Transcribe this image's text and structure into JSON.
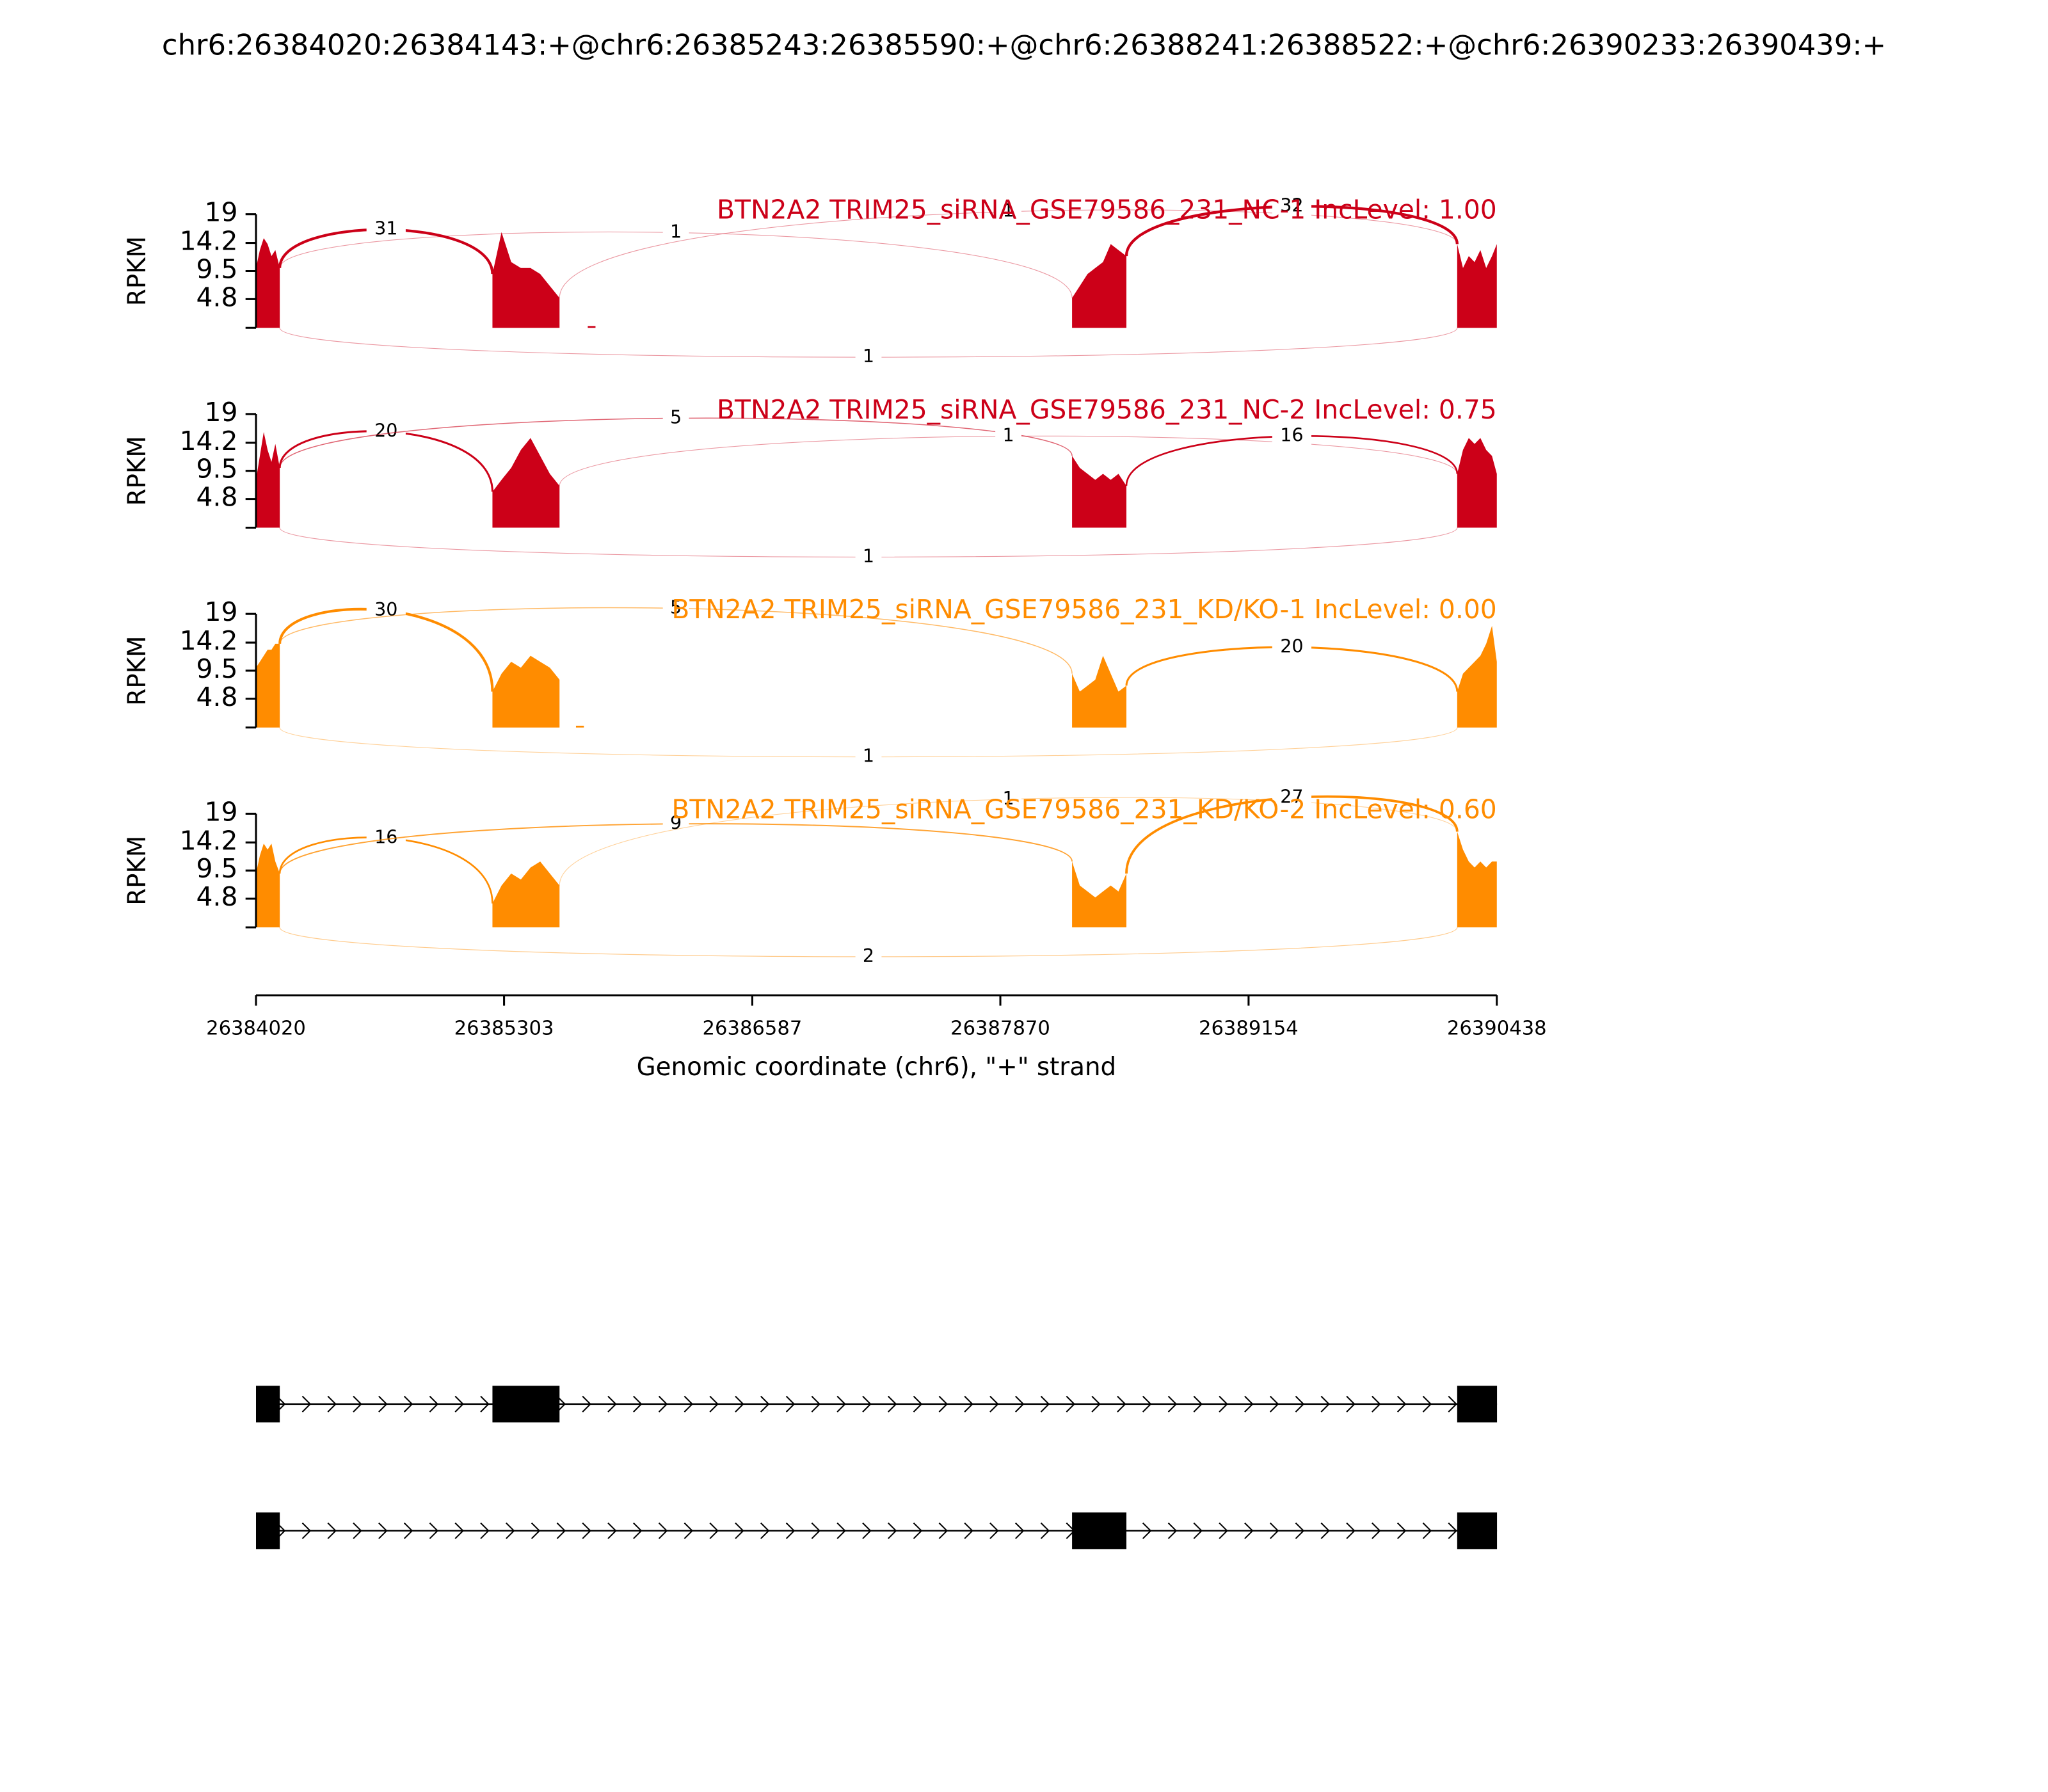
{
  "chart_data": {
    "type": "sashimi",
    "title": "chr6:26384020:26384143:+@chr6:26385243:26385590:+@chr6:26388241:26388522:+@chr6:26390233:26390439:+",
    "xlabel": "Genomic coordinate (chr6), \"+\" strand",
    "ylabel": "RPKM",
    "xlim": [
      26384020,
      26390438
    ],
    "xticks": [
      26384020,
      26385303,
      26386587,
      26387870,
      26389154,
      26390438
    ],
    "ylim": [
      0,
      19
    ],
    "yticks": [
      4.8,
      9.5,
      14.2,
      19
    ],
    "panels": [
      {
        "label": "BTN2A2 TRIM25_siRNA_GSE79586_231_NC-1 IncLevel: 1.00",
        "color": "#cc0018",
        "coverage": [
          {
            "x": [
              26384020,
              26384040,
              26384060,
              26384080,
              26384100,
              26384120,
              26384143
            ],
            "values": [
              10,
              13,
              15,
              14,
              12,
              13,
              10
            ]
          },
          {
            "x": [
              26385243,
              26385290,
              26385340,
              26385390,
              26385440,
              26385490,
              26385540,
              26385590
            ],
            "values": [
              9,
              16,
              11,
              10,
              10,
              9,
              7,
              5
            ]
          },
          {
            "x": [
              26385736,
              26385776
            ],
            "values": [
              0.3,
              0.3
            ]
          },
          {
            "x": [
              26388241,
              26388281,
              26388321,
              26388361,
              26388401,
              26388441,
              26388481,
              26388522
            ],
            "values": [
              5,
              7,
              9,
              10,
              11,
              14,
              13,
              12
            ]
          },
          {
            "x": [
              26390233,
              26390263,
              26390293,
              26390323,
              26390353,
              26390383,
              26390413,
              26390438
            ],
            "values": [
              14,
              10,
              12,
              11,
              13,
              10,
              12,
              14
            ]
          }
        ],
        "junctions": [
          {
            "start": 26384143,
            "end": 26385243,
            "count": 31,
            "side": "above"
          },
          {
            "start": 26384143,
            "end": 26388241,
            "count": 1,
            "side": "above"
          },
          {
            "start": 26385590,
            "end": 26390233,
            "count": 1,
            "side": "above"
          },
          {
            "start": 26388522,
            "end": 26390233,
            "count": 32,
            "side": "above"
          },
          {
            "start": 26384143,
            "end": 26390233,
            "count": 1,
            "side": "below"
          }
        ]
      },
      {
        "label": "BTN2A2 TRIM25_siRNA_GSE79586_231_NC-2 IncLevel: 0.75",
        "color": "#cc0018",
        "coverage": [
          {
            "x": [
              26384020,
              26384040,
              26384060,
              26384080,
              26384100,
              26384120,
              26384143
            ],
            "values": [
              8,
              12,
              16,
              13,
              11,
              14,
              10
            ]
          },
          {
            "x": [
              26385243,
              26385290,
              26385340,
              26385390,
              26385440,
              26385490,
              26385540,
              26385590
            ],
            "values": [
              6,
              8,
              10,
              13,
              15,
              12,
              9,
              7
            ]
          },
          {
            "x": [
              26388241,
              26388281,
              26388321,
              26388361,
              26388401,
              26388441,
              26388481,
              26388522
            ],
            "values": [
              12,
              10,
              9,
              8,
              9,
              8,
              9,
              7
            ]
          },
          {
            "x": [
              26390233,
              26390263,
              26390293,
              26390323,
              26390353,
              26390383,
              26390413,
              26390438
            ],
            "values": [
              9,
              13,
              15,
              14,
              15,
              13,
              12,
              9
            ]
          }
        ],
        "junctions": [
          {
            "start": 26384143,
            "end": 26385243,
            "count": 20,
            "side": "above"
          },
          {
            "start": 26384143,
            "end": 26388241,
            "count": 5,
            "side": "above"
          },
          {
            "start": 26385590,
            "end": 26390233,
            "count": 1,
            "side": "above"
          },
          {
            "start": 26388522,
            "end": 26390233,
            "count": 16,
            "side": "above"
          },
          {
            "start": 26384143,
            "end": 26390233,
            "count": 1,
            "side": "below"
          }
        ]
      },
      {
        "label": "BTN2A2 TRIM25_siRNA_GSE79586_231_KD/KO-1 IncLevel: 0.00",
        "color": "#ff8c00",
        "coverage": [
          {
            "x": [
              26384020,
              26384040,
              26384060,
              26384080,
              26384100,
              26384120,
              26384143
            ],
            "values": [
              10,
              11,
              12,
              13,
              13,
              14,
              14
            ]
          },
          {
            "x": [
              26385243,
              26385290,
              26385340,
              26385390,
              26385440,
              26385490,
              26385540,
              26385590
            ],
            "values": [
              6,
              9,
              11,
              10,
              12,
              11,
              10,
              8
            ]
          },
          {
            "x": [
              26385675,
              26385716
            ],
            "values": [
              0.3,
              0.3
            ]
          },
          {
            "x": [
              26388241,
              26388281,
              26388321,
              26388361,
              26388401,
              26388441,
              26388481,
              26388522
            ],
            "values": [
              9,
              6,
              7,
              8,
              12,
              9,
              6,
              7
            ]
          },
          {
            "x": [
              26390233,
              26390263,
              26390293,
              26390323,
              26390353,
              26390383,
              26390413,
              26390438
            ],
            "values": [
              6,
              9,
              10,
              11,
              12,
              14,
              17,
              11
            ]
          }
        ],
        "junctions": [
          {
            "start": 26384143,
            "end": 26385243,
            "count": 30,
            "side": "above"
          },
          {
            "start": 26384143,
            "end": 26388241,
            "count": 5,
            "side": "above"
          },
          {
            "start": 26388522,
            "end": 26390233,
            "count": 20,
            "side": "above"
          },
          {
            "start": 26384143,
            "end": 26390233,
            "count": 1,
            "side": "below"
          }
        ]
      },
      {
        "label": "BTN2A2 TRIM25_siRNA_GSE79586_231_KD/KO-2 IncLevel: 0.60",
        "color": "#ff8c00",
        "coverage": [
          {
            "x": [
              26384020,
              26384040,
              26384060,
              26384080,
              26384100,
              26384120,
              26384143
            ],
            "values": [
              9,
              12,
              14,
              13,
              14,
              11,
              9
            ]
          },
          {
            "x": [
              26385243,
              26385290,
              26385340,
              26385390,
              26385440,
              26385490,
              26385540,
              26385590
            ],
            "values": [
              4,
              7,
              9,
              8,
              10,
              11,
              9,
              7
            ]
          },
          {
            "x": [
              26388241,
              26388281,
              26388321,
              26388361,
              26388401,
              26388441,
              26388481,
              26388522
            ],
            "values": [
              11,
              7,
              6,
              5,
              6,
              7,
              6,
              9
            ]
          },
          {
            "x": [
              26390233,
              26390263,
              26390293,
              26390323,
              26390353,
              26390383,
              26390413,
              26390438
            ],
            "values": [
              16,
              13,
              11,
              10,
              11,
              10,
              11,
              11
            ]
          }
        ],
        "junctions": [
          {
            "start": 26384143,
            "end": 26385243,
            "count": 16,
            "side": "above"
          },
          {
            "start": 26384143,
            "end": 26388241,
            "count": 9,
            "side": "above"
          },
          {
            "start": 26385590,
            "end": 26390233,
            "count": 1,
            "side": "above"
          },
          {
            "start": 26388522,
            "end": 26390233,
            "count": 27,
            "side": "above"
          },
          {
            "start": 26384143,
            "end": 26390233,
            "count": 2,
            "side": "below"
          }
        ]
      }
    ],
    "transcripts": [
      {
        "exons": [
          [
            26384020,
            26384143
          ],
          [
            26385243,
            26385590
          ],
          [
            26390233,
            26390439
          ]
        ]
      },
      {
        "exons": [
          [
            26384020,
            26384143
          ],
          [
            26388241,
            26388522
          ],
          [
            26390233,
            26390439
          ]
        ]
      }
    ]
  }
}
